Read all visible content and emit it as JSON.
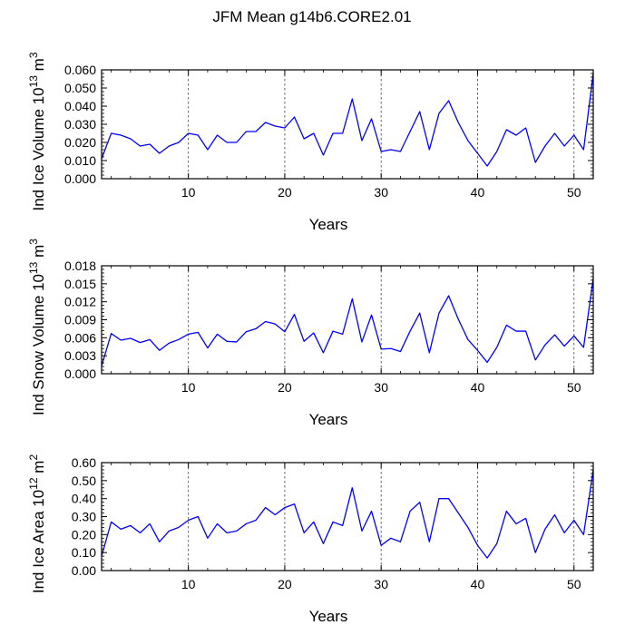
{
  "title": "JFM Mean g14b6.CORE2.01",
  "chart_data": [
    {
      "type": "line",
      "title": "JFM Mean g14b6.CORE2.01",
      "xlabel": "Years",
      "ylabel": {
        "prefix": "Ind Ice Volume 10",
        "sup": "13",
        "unit": " m",
        "unit_sup": "3"
      },
      "xlim": [
        1,
        52
      ],
      "ylim": [
        0,
        0.06
      ],
      "xticks": [
        10,
        20,
        30,
        40,
        50
      ],
      "xtick_labels": [
        "10",
        "20",
        "30",
        "40",
        "50"
      ],
      "yticks": [
        0,
        0.01,
        0.02,
        0.03,
        0.04,
        0.05,
        0.06
      ],
      "ytick_labels": [
        "0.000",
        "0.010",
        "0.020",
        "0.030",
        "0.040",
        "0.050",
        "0.060"
      ],
      "vlines": [
        10,
        20,
        30,
        40,
        50
      ],
      "line_color": "#0000ff",
      "x": [
        1,
        2,
        3,
        4,
        5,
        6,
        7,
        8,
        9,
        10,
        11,
        12,
        13,
        14,
        15,
        16,
        17,
        18,
        19,
        20,
        21,
        22,
        23,
        24,
        25,
        26,
        27,
        28,
        29,
        30,
        31,
        32,
        33,
        34,
        35,
        36,
        37,
        38,
        39,
        40,
        41,
        42,
        43,
        44,
        45,
        46,
        47,
        48,
        49,
        50,
        51,
        52
      ],
      "values": [
        0.011,
        0.025,
        0.024,
        0.022,
        0.018,
        0.019,
        0.014,
        0.018,
        0.02,
        0.025,
        0.024,
        0.016,
        0.024,
        0.02,
        0.02,
        0.026,
        0.026,
        0.031,
        0.029,
        0.028,
        0.034,
        0.022,
        0.025,
        0.013,
        0.025,
        0.025,
        0.044,
        0.021,
        0.033,
        0.015,
        0.016,
        0.015,
        0.026,
        0.037,
        0.016,
        0.036,
        0.043,
        0.031,
        0.021,
        0.014,
        0.007,
        0.015,
        0.027,
        0.024,
        0.028,
        0.009,
        0.018,
        0.025,
        0.018,
        0.024,
        0.016,
        0.058
      ]
    },
    {
      "type": "line",
      "xlabel": "Years",
      "ylabel": {
        "prefix": "Ind Snow Volume 10",
        "sup": "13",
        "unit": " m",
        "unit_sup": "3"
      },
      "xlim": [
        1,
        52
      ],
      "ylim": [
        0,
        0.018
      ],
      "xticks": [
        10,
        20,
        30,
        40,
        50
      ],
      "xtick_labels": [
        "10",
        "20",
        "30",
        "40",
        "50"
      ],
      "yticks": [
        0,
        0.003,
        0.006,
        0.009,
        0.012,
        0.015,
        0.018
      ],
      "ytick_labels": [
        "0.000",
        "0.003",
        "0.006",
        "0.009",
        "0.012",
        "0.015",
        "0.018"
      ],
      "vlines": [
        10,
        20,
        30,
        40,
        50
      ],
      "line_color": "#0000ff",
      "x": [
        1,
        2,
        3,
        4,
        5,
        6,
        7,
        8,
        9,
        10,
        11,
        12,
        13,
        14,
        15,
        16,
        17,
        18,
        19,
        20,
        21,
        22,
        23,
        24,
        25,
        26,
        27,
        28,
        29,
        30,
        31,
        32,
        33,
        34,
        35,
        36,
        37,
        38,
        39,
        40,
        41,
        42,
        43,
        44,
        45,
        46,
        47,
        48,
        49,
        50,
        51,
        52
      ],
      "values": [
        0.0013,
        0.0067,
        0.0056,
        0.0059,
        0.0052,
        0.0057,
        0.0039,
        0.0051,
        0.0057,
        0.0066,
        0.0069,
        0.0043,
        0.0066,
        0.0054,
        0.0053,
        0.007,
        0.0075,
        0.0087,
        0.0083,
        0.007,
        0.0099,
        0.0054,
        0.0068,
        0.0035,
        0.0071,
        0.0066,
        0.0125,
        0.0053,
        0.0098,
        0.0041,
        0.0042,
        0.0037,
        0.0071,
        0.0101,
        0.0035,
        0.0101,
        0.013,
        0.0091,
        0.0057,
        0.0039,
        0.0019,
        0.0044,
        0.0081,
        0.0071,
        0.0071,
        0.0023,
        0.0048,
        0.0065,
        0.0046,
        0.0063,
        0.0044,
        0.0159
      ]
    },
    {
      "type": "line",
      "xlabel": "Years",
      "ylabel": {
        "prefix": "Ind Ice Area 10",
        "sup": "12",
        "unit": " m",
        "unit_sup": "2"
      },
      "xlim": [
        1,
        52
      ],
      "ylim": [
        0,
        0.6
      ],
      "xticks": [
        10,
        20,
        30,
        40,
        50
      ],
      "xtick_labels": [
        "10",
        "20",
        "30",
        "40",
        "50"
      ],
      "yticks": [
        0,
        0.1,
        0.2,
        0.3,
        0.4,
        0.5,
        0.6
      ],
      "ytick_labels": [
        "0.00",
        "0.10",
        "0.20",
        "0.30",
        "0.40",
        "0.50",
        "0.60"
      ],
      "vlines": [
        10,
        20,
        30,
        40,
        50
      ],
      "line_color": "#0000ff",
      "x": [
        1,
        2,
        3,
        4,
        5,
        6,
        7,
        8,
        9,
        10,
        11,
        12,
        13,
        14,
        15,
        16,
        17,
        18,
        19,
        20,
        21,
        22,
        23,
        24,
        25,
        26,
        27,
        28,
        29,
        30,
        31,
        32,
        33,
        34,
        35,
        36,
        37,
        38,
        39,
        40,
        41,
        42,
        43,
        44,
        45,
        46,
        47,
        48,
        49,
        50,
        51,
        52
      ],
      "values": [
        0.08,
        0.27,
        0.23,
        0.25,
        0.21,
        0.26,
        0.16,
        0.22,
        0.24,
        0.28,
        0.3,
        0.18,
        0.26,
        0.21,
        0.22,
        0.26,
        0.28,
        0.35,
        0.31,
        0.35,
        0.37,
        0.21,
        0.27,
        0.15,
        0.27,
        0.25,
        0.46,
        0.22,
        0.33,
        0.14,
        0.18,
        0.16,
        0.33,
        0.38,
        0.16,
        0.4,
        0.4,
        0.32,
        0.24,
        0.14,
        0.07,
        0.15,
        0.33,
        0.26,
        0.29,
        0.1,
        0.23,
        0.31,
        0.21,
        0.28,
        0.2,
        0.56
      ]
    }
  ]
}
